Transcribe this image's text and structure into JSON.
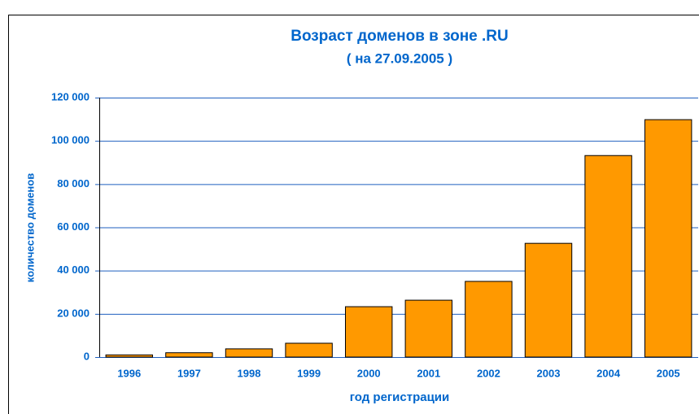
{
  "chart_data": {
    "type": "bar",
    "title": "Возраст доменов в зоне .RU",
    "subtitle": "( на 27.09.2005 )",
    "x_label": "год регистрации",
    "y_label": "количество доменов",
    "categories": [
      "1996",
      "1997",
      "1998",
      "1999",
      "2000",
      "2001",
      "2002",
      "2003",
      "2004",
      "2005"
    ],
    "values": [
      1000,
      2000,
      3800,
      6400,
      23300,
      26300,
      35000,
      52600,
      93200,
      109800
    ],
    "color": "#ff9900",
    "ylim": [
      0,
      120000
    ],
    "yticks": [
      0,
      {
        "value": 20000,
        "label": "20 000"
      },
      {
        "value": 40000,
        "label": "40 000"
      },
      {
        "value": 60000,
        "label": "60 000"
      },
      {
        "value": 80000,
        "label": "80 000"
      },
      {
        "value": 100000,
        "label": "100 000"
      },
      {
        "value": 120000,
        "label": "120 000"
      }
    ],
    "grid": true
  }
}
